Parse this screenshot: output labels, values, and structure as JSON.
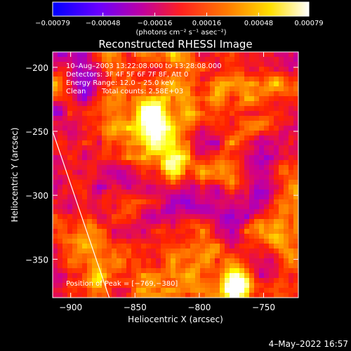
{
  "chart_data": {
    "type": "heatmap",
    "title": "Reconstructed RHESSI Image",
    "xlabel": "Heliocentric X (arcsec)",
    "ylabel": "Heliocentric Y (arcsec)",
    "x_ticks": [
      -900,
      -850,
      -800,
      -750
    ],
    "x_tick_labels": [
      "−900",
      "−850",
      "−800",
      "−750"
    ],
    "y_ticks": [
      -200,
      -250,
      -300,
      -350
    ],
    "y_tick_labels": [
      "−200",
      "−250",
      "−300",
      "−350"
    ],
    "xlim": [
      -914,
      -723
    ],
    "ylim": [
      -380,
      -188
    ],
    "colorbar": {
      "ticks": [
        -0.00079,
        -0.00048,
        -0.00016,
        0.00016,
        0.00048,
        0.00079
      ],
      "tick_labels": [
        "−0.00079",
        "−0.00048",
        "−0.00016",
        "0.00016",
        "0.00048",
        "0.00079"
      ],
      "unit_label": "(photons cm⁻² s⁻¹ asec⁻²)",
      "range": [
        -0.00079,
        0.00079
      ],
      "colors": [
        "#0000ff",
        "#7a00ff",
        "#d0008a",
        "#ff2200",
        "#ff8c00",
        "#ffff00",
        "#ffffff"
      ]
    },
    "annotations": {
      "time_range": "10–Aug–2003 13:22:08.000 to 13:28:08.000",
      "detectors": "Detectors: 3F 4F 5F 6F 7F 8F, Att 0",
      "energy": "Energy Range: 12.0 – 25.0 keV",
      "clean": "Clean",
      "total_counts": "Total counts: 2.58E+03",
      "peak": "Position of Peak = [−769,−380]"
    },
    "peak_position": [
      -769,
      -380
    ],
    "limb_line": [
      [
        -914,
        -250
      ],
      [
        -870,
        -380
      ]
    ],
    "grid": false
  },
  "footer": {
    "date": "4–May–2022 16:57"
  }
}
